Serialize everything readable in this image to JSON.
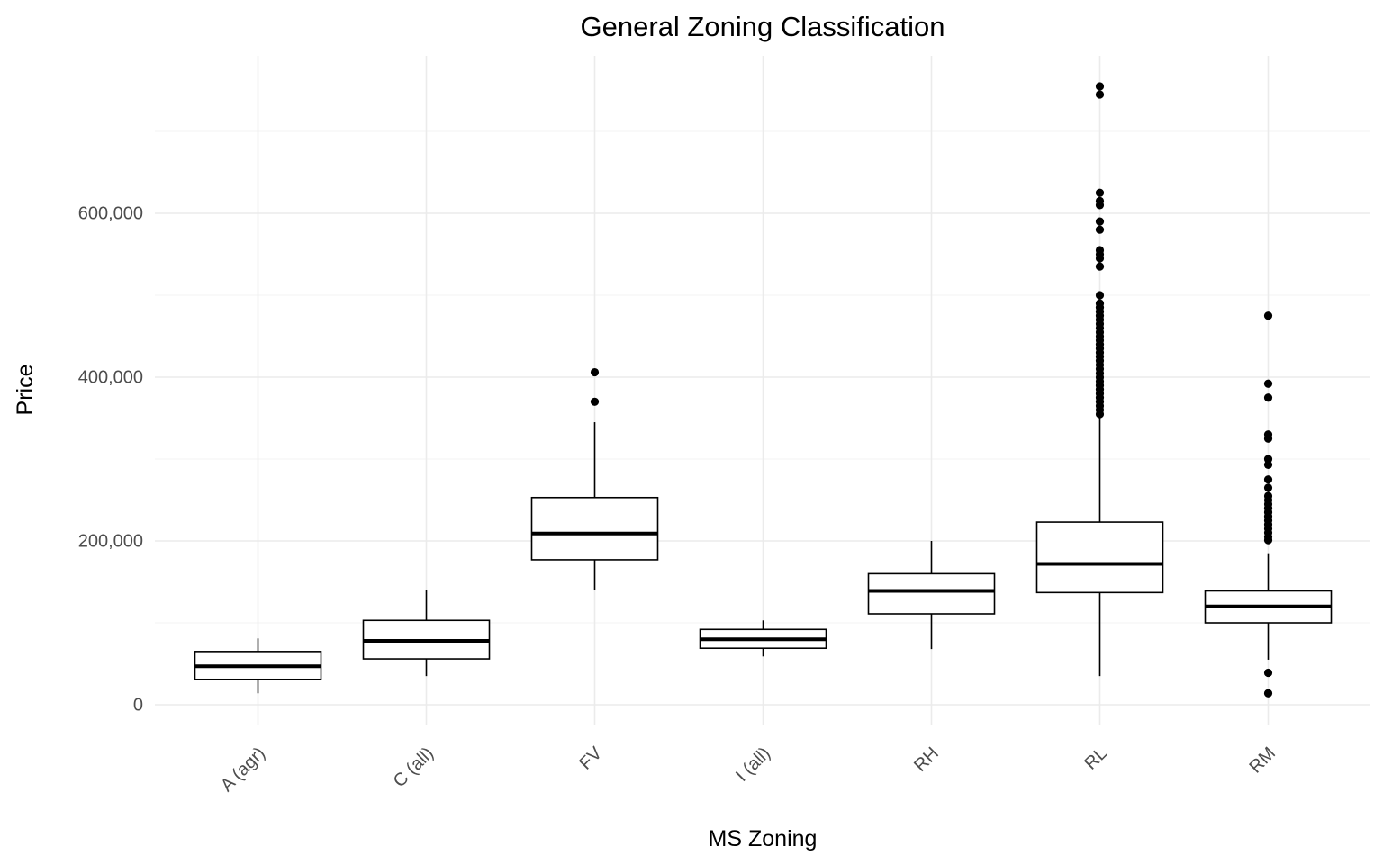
{
  "chart_data": {
    "type": "box",
    "title": "General Zoning Classification",
    "xlabel": "MS Zoning",
    "ylabel": "Price",
    "ylim": [
      -30000,
      790000
    ],
    "y_ticks": [
      0,
      200000,
      400000,
      600000
    ],
    "y_tick_labels": [
      "0",
      "200,000",
      "400,000",
      "600,000"
    ],
    "grid": true,
    "categories": [
      "A (agr)",
      "C (all)",
      "FV",
      "I (all)",
      "RH",
      "RL",
      "RM"
    ],
    "boxes": [
      {
        "category": "A (agr)",
        "whisker_low": 14000,
        "q1": 31000,
        "median": 47000,
        "q3": 65000,
        "whisker_high": 81000,
        "outliers": []
      },
      {
        "category": "C (all)",
        "whisker_low": 35000,
        "q1": 56000,
        "median": 78000,
        "q3": 103000,
        "whisker_high": 140000,
        "outliers": []
      },
      {
        "category": "FV",
        "whisker_low": 140000,
        "q1": 177000,
        "median": 209000,
        "q3": 253000,
        "whisker_high": 345000,
        "outliers": [
          370000,
          406000
        ]
      },
      {
        "category": "I (all)",
        "whisker_low": 59000,
        "q1": 69000,
        "median": 80000,
        "q3": 92000,
        "whisker_high": 103000,
        "outliers": []
      },
      {
        "category": "RH",
        "whisker_low": 68000,
        "q1": 111000,
        "median": 139000,
        "q3": 160000,
        "whisker_high": 200000,
        "outliers": []
      },
      {
        "category": "RL",
        "whisker_low": 35000,
        "q1": 137000,
        "median": 172000,
        "q3": 223000,
        "whisker_high": 350000,
        "outliers": [
          355000,
          360000,
          365000,
          370000,
          375000,
          380000,
          385000,
          390000,
          395000,
          400000,
          405000,
          410000,
          415000,
          420000,
          425000,
          430000,
          435000,
          440000,
          445000,
          450000,
          455000,
          460000,
          465000,
          470000,
          475000,
          480000,
          485000,
          490000,
          500000,
          535000,
          545000,
          550000,
          555000,
          580000,
          590000,
          610000,
          615000,
          625000,
          745000,
          755000
        ]
      },
      {
        "category": "RM",
        "whisker_low": 55000,
        "q1": 100000,
        "median": 120000,
        "q3": 139000,
        "whisker_high": 185000,
        "outliers": [
          14000,
          39000,
          201000,
          205000,
          210000,
          215000,
          220000,
          225000,
          230000,
          235000,
          240000,
          245000,
          250000,
          255000,
          265000,
          275000,
          293000,
          300000,
          325000,
          330000,
          375000,
          392000,
          475000
        ]
      }
    ]
  }
}
